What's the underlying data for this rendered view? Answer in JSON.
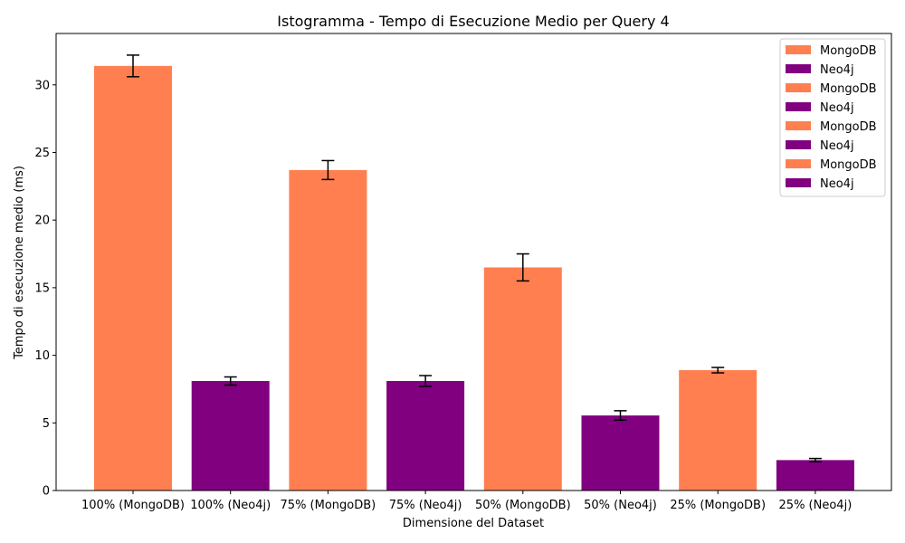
{
  "chart_data": {
    "type": "bar",
    "title": "Istogramma - Tempo di Esecuzione Medio per Query 4",
    "xlabel": "Dimensione del Dataset",
    "ylabel": "Tempo di esecuzione medio (ms)",
    "ylim": [
      0,
      33.8
    ],
    "yticks": [
      0,
      5,
      10,
      15,
      20,
      25,
      30
    ],
    "grid": false,
    "legend_position": "top-right",
    "categories": [
      "100% (MongoDB)",
      "100% (Neo4j)",
      "75% (MongoDB)",
      "75% (Neo4j)",
      "50% (MongoDB)",
      "50% (Neo4j)",
      "25% (MongoDB)",
      "25% (Neo4j)"
    ],
    "values": [
      31.4,
      8.1,
      23.7,
      8.1,
      16.5,
      5.55,
      8.9,
      2.25
    ],
    "errors": [
      0.8,
      0.3,
      0.7,
      0.4,
      1.0,
      0.35,
      0.2,
      0.12
    ],
    "bar_series": [
      "MongoDB",
      "Neo4j",
      "MongoDB",
      "Neo4j",
      "MongoDB",
      "Neo4j",
      "MongoDB",
      "Neo4j"
    ],
    "colors": {
      "MongoDB": "#ff7f50",
      "Neo4j": "#800080"
    },
    "legend": [
      "MongoDB",
      "Neo4j",
      "MongoDB",
      "Neo4j",
      "MongoDB",
      "Neo4j",
      "MongoDB",
      "Neo4j"
    ]
  }
}
